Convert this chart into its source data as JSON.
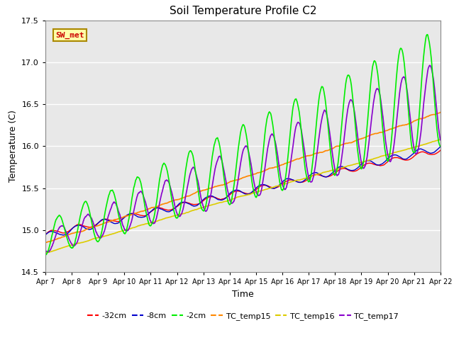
{
  "title": "Soil Temperature Profile C2",
  "xlabel": "Time",
  "ylabel": "Temperature (C)",
  "ylim": [
    14.5,
    17.5
  ],
  "yticks": [
    14.5,
    15.0,
    15.5,
    16.0,
    16.5,
    17.0,
    17.5
  ],
  "bg_color": "#e8e8e8",
  "fig_bg_color": "#ffffff",
  "annotation_label": "SW_met",
  "annotation_bg": "#ffffaa",
  "annotation_fg": "#cc0000",
  "annotation_border": "#aa8800",
  "legend_entries": [
    "-32cm",
    "-8cm",
    "-2cm",
    "TC_temp15",
    "TC_temp16",
    "TC_temp17"
  ],
  "line_colors": [
    "#ff0000",
    "#0000cc",
    "#00ee00",
    "#ff8800",
    "#ddcc00",
    "#8800cc"
  ],
  "line_widths": [
    1.0,
    1.0,
    1.2,
    1.2,
    1.2,
    1.2
  ],
  "n_points": 1500,
  "xtick_labels": [
    "Apr 7",
    "Apr 8",
    "Apr 9",
    "Apr 10",
    "Apr 11",
    "Apr 12",
    "Apr 13",
    "Apr 14",
    "Apr 15",
    "Apr 16",
    "Apr 17",
    "Apr 18",
    "Apr 19",
    "Apr 20",
    "Apr 21",
    "Apr 22"
  ]
}
